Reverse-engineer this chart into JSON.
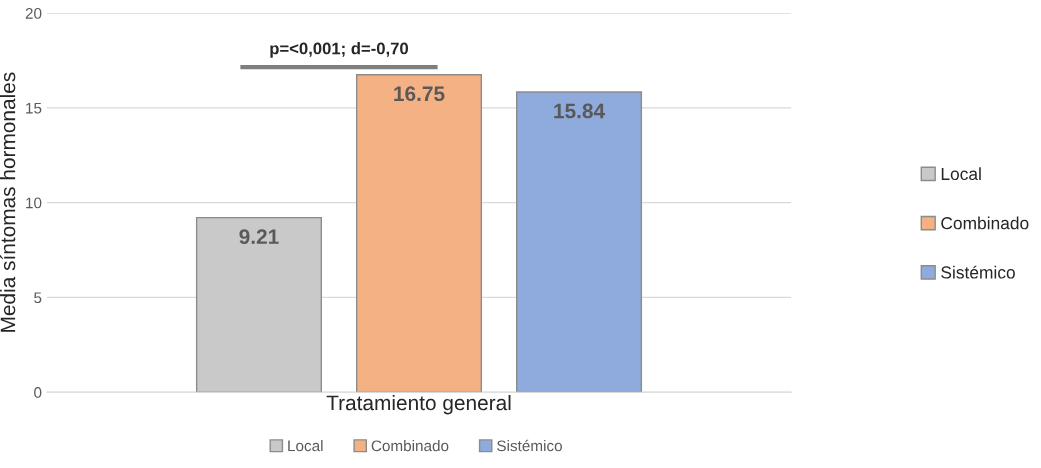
{
  "chart_data": {
    "type": "bar",
    "categories": [
      "Tratamiento general"
    ],
    "ylabel": "Media síntomas hormonales",
    "series": [
      {
        "name": "Local",
        "color": "#c9c9c9",
        "values": [
          9.21
        ]
      },
      {
        "name": "Combinado",
        "color": "#f4b183",
        "values": [
          16.75
        ]
      },
      {
        "name": "Sistémico",
        "color": "#8faadc",
        "values": [
          15.84
        ]
      }
    ],
    "ylim": [
      0,
      20
    ],
    "yticks": [
      0,
      5,
      10,
      15,
      20
    ],
    "grid": "y",
    "legend": "right",
    "data_labels": true,
    "annotations": [
      "p=<0,001; d=-0,70"
    ]
  }
}
